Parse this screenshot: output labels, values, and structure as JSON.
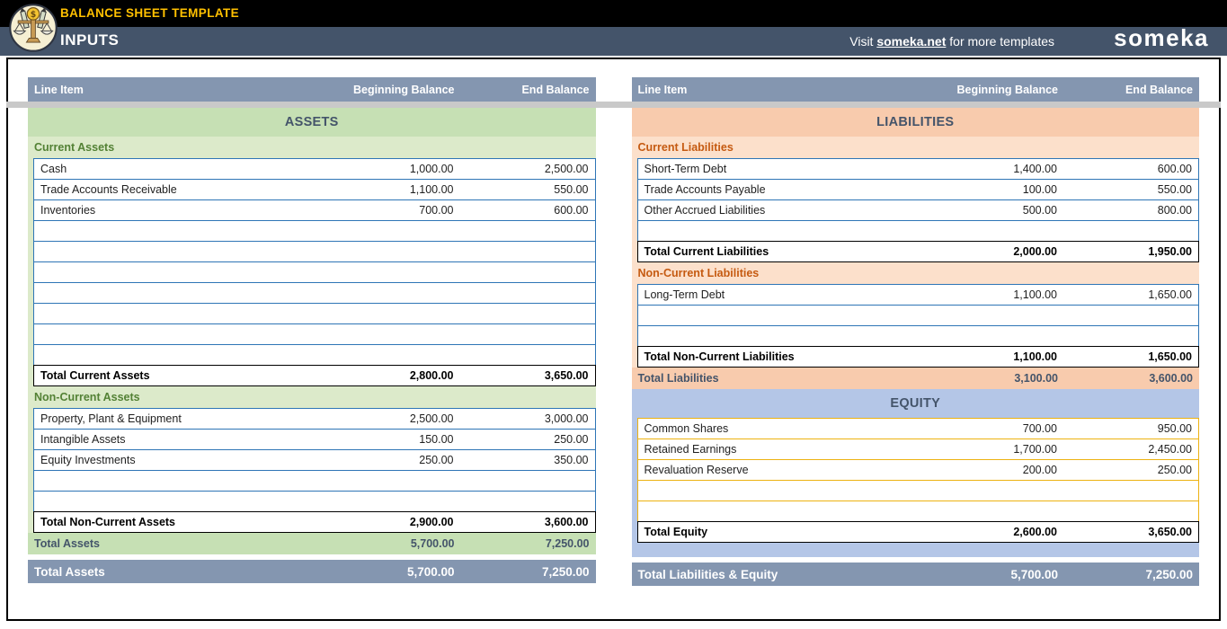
{
  "header": {
    "top_title": "BALANCE SHEET TEMPLATE",
    "sheet_title": "INPUTS",
    "promo_prefix": "Visit ",
    "promo_link": "someka.net",
    "promo_suffix": " for more templates",
    "brand": "someka",
    "logo_icon": "balance-scale-icon"
  },
  "columns": {
    "line_item": "Line Item",
    "beginning": "Beginning Balance",
    "end": "End Balance"
  },
  "left": {
    "groups": [
      {
        "name": "assets",
        "theme": "green",
        "title": "ASSETS",
        "rows": [
          {
            "kind": "subheader",
            "label": "Current Assets"
          },
          {
            "kind": "item",
            "label": "Cash",
            "begin": "1,000.00",
            "end": "2,500.00"
          },
          {
            "kind": "item",
            "label": "Trade Accounts Receivable",
            "begin": "1,100.00",
            "end": "550.00"
          },
          {
            "kind": "item",
            "label": "Inventories",
            "begin": "700.00",
            "end": "600.00"
          },
          {
            "kind": "blank",
            "label": "",
            "begin": "",
            "end": ""
          },
          {
            "kind": "blank",
            "label": "",
            "begin": "",
            "end": ""
          },
          {
            "kind": "blank",
            "label": "",
            "begin": "",
            "end": ""
          },
          {
            "kind": "blank",
            "label": "",
            "begin": "",
            "end": ""
          },
          {
            "kind": "blank",
            "label": "",
            "begin": "",
            "end": ""
          },
          {
            "kind": "blank",
            "label": "",
            "begin": "",
            "end": ""
          },
          {
            "kind": "blank",
            "label": "",
            "begin": "",
            "end": ""
          },
          {
            "kind": "total",
            "label": "Total Current Assets",
            "begin": "2,800.00",
            "end": "3,650.00"
          },
          {
            "kind": "subheader",
            "label": "Non-Current Assets"
          },
          {
            "kind": "item",
            "label": "Property, Plant & Equipment",
            "begin": "2,500.00",
            "end": "3,000.00"
          },
          {
            "kind": "item",
            "label": "Intangible Assets",
            "begin": "150.00",
            "end": "250.00"
          },
          {
            "kind": "item",
            "label": "Equity Investments",
            "begin": "250.00",
            "end": "350.00"
          },
          {
            "kind": "blank",
            "label": "",
            "begin": "",
            "end": ""
          },
          {
            "kind": "blank",
            "label": "",
            "begin": "",
            "end": ""
          },
          {
            "kind": "total",
            "label": "Total Non-Current Assets",
            "begin": "2,900.00",
            "end": "3,600.00"
          },
          {
            "kind": "band-total",
            "label": "Total Assets",
            "begin": "5,700.00",
            "end": "7,250.00"
          }
        ]
      }
    ],
    "footer": {
      "label": "Total Assets",
      "begin": "5,700.00",
      "end": "7,250.00"
    }
  },
  "right": {
    "groups": [
      {
        "name": "liabilities",
        "theme": "orange",
        "title": "LIABILITIES",
        "rows": [
          {
            "kind": "subheader",
            "label": "Current Liabilities"
          },
          {
            "kind": "item",
            "label": "Short-Term Debt",
            "begin": "1,400.00",
            "end": "600.00"
          },
          {
            "kind": "item",
            "label": "Trade Accounts Payable",
            "begin": "100.00",
            "end": "550.00"
          },
          {
            "kind": "item",
            "label": "Other Accrued Liabilities",
            "begin": "500.00",
            "end": "800.00"
          },
          {
            "kind": "blank",
            "label": "",
            "begin": "",
            "end": ""
          },
          {
            "kind": "total",
            "label": "Total Current Liabilities",
            "begin": "2,000.00",
            "end": "1,950.00"
          },
          {
            "kind": "subheader",
            "label": "Non-Current Liabilities"
          },
          {
            "kind": "item",
            "label": "Long-Term Debt",
            "begin": "1,100.00",
            "end": "1,650.00"
          },
          {
            "kind": "blank",
            "label": "",
            "begin": "",
            "end": ""
          },
          {
            "kind": "blank",
            "label": "",
            "begin": "",
            "end": ""
          },
          {
            "kind": "total",
            "label": "Total Non-Current Liabilities",
            "begin": "1,100.00",
            "end": "1,650.00"
          },
          {
            "kind": "band-total",
            "label": "Total Liabilities",
            "begin": "3,100.00",
            "end": "3,600.00"
          }
        ]
      },
      {
        "name": "equity",
        "theme": "blue",
        "title": "EQUITY",
        "filler": true,
        "rows": [
          {
            "kind": "item",
            "label": "Common Shares",
            "begin": "700.00",
            "end": "950.00"
          },
          {
            "kind": "item",
            "label": "Retained Earnings",
            "begin": "1,700.00",
            "end": "2,450.00"
          },
          {
            "kind": "item",
            "label": "Revaluation Reserve",
            "begin": "200.00",
            "end": "250.00"
          },
          {
            "kind": "blank",
            "label": "",
            "begin": "",
            "end": ""
          },
          {
            "kind": "blank",
            "label": "",
            "begin": "",
            "end": ""
          },
          {
            "kind": "total",
            "label": "Total Equity",
            "begin": "2,600.00",
            "end": "3,650.00"
          }
        ]
      }
    ],
    "footer": {
      "label": "Total Liabilities & Equity",
      "begin": "5,700.00",
      "end": "7,250.00"
    }
  },
  "colors": {
    "accent_gold": "#FFC000",
    "header_dark_slate": "#44546A",
    "table_header_blue_gray": "#8496B0",
    "assets_band_green": "#C6E0B4",
    "assets_light_green": "#DCEACA",
    "assets_text_green": "#538135",
    "liabilities_band_orange": "#F8CBAD",
    "liabilities_light_orange": "#FCE0CB",
    "liabilities_text_orange": "#C55A11",
    "equity_band_blue": "#B4C6E7",
    "row_border_blue": "#2E75B6",
    "row_border_gold": "#EDB211",
    "strip_gray": "#C9C9C9"
  }
}
